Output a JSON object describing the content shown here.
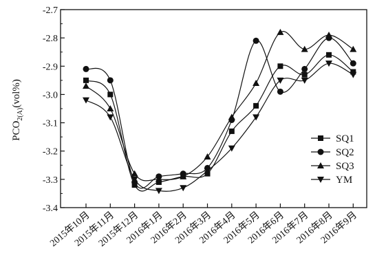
{
  "chart_data": {
    "type": "line",
    "ylabel": {
      "base": "PCO",
      "sub": "2(A)",
      "rest": "(vol%)"
    },
    "ylim": [
      -3.4,
      -2.7
    ],
    "yticks": [
      "-2.7",
      "-2.8",
      "-2.9",
      "-3.0",
      "-3.1",
      "-3.2",
      "-3.3",
      "-3.4"
    ],
    "categories": [
      "2015年10月",
      "2015年11月",
      "2015年12月",
      "2016年1月",
      "2016年2月",
      "2016年3月",
      "2016年4月",
      "2016年5月",
      "2016年6月",
      "2016年7月",
      "2016年8月",
      "2016年9月"
    ],
    "grid": false,
    "legend_position": "right",
    "series": [
      {
        "name": "SQ1",
        "marker": "square",
        "values": [
          -2.95,
          -3.0,
          -3.32,
          -3.31,
          -3.29,
          -3.28,
          -3.13,
          -3.04,
          -2.9,
          -2.93,
          -2.86,
          -2.92
        ]
      },
      {
        "name": "SQ2",
        "marker": "circle",
        "values": [
          -2.91,
          -2.95,
          -3.31,
          -3.29,
          -3.28,
          -3.26,
          -3.09,
          -2.81,
          -2.99,
          -2.91,
          -2.8,
          -2.89
        ]
      },
      {
        "name": "SQ3",
        "marker": "triangle-up",
        "values": [
          -2.97,
          -3.05,
          -3.28,
          -3.3,
          -3.29,
          -3.22,
          -3.08,
          -2.96,
          -2.78,
          -2.84,
          -2.79,
          -2.84
        ]
      },
      {
        "name": "YM",
        "marker": "triangle-down",
        "values": [
          -3.02,
          -3.08,
          -3.3,
          -3.34,
          -3.33,
          -3.27,
          -3.19,
          -3.08,
          -2.95,
          -2.95,
          -2.89,
          -2.93
        ]
      }
    ]
  }
}
